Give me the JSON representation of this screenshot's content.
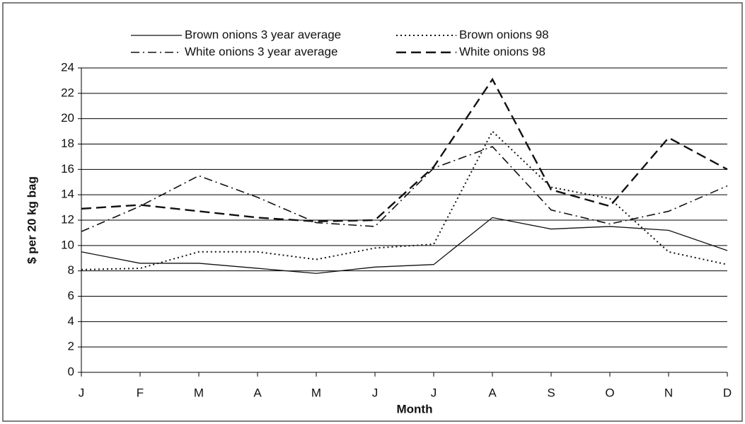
{
  "chart_data": {
    "type": "line",
    "x_label": "Month",
    "y_label": "$ per 20 kg bag",
    "categories": [
      "J",
      "F",
      "M",
      "A",
      "M",
      "J",
      "J",
      "A",
      "S",
      "O",
      "N",
      "D"
    ],
    "series": [
      {
        "name": "Brown onions 3 year average",
        "color": "#111111",
        "dash": "solid",
        "values": [
          9.5,
          8.6,
          8.6,
          8.2,
          7.8,
          8.3,
          8.5,
          12.2,
          11.3,
          11.5,
          11.2,
          9.6
        ]
      },
      {
        "name": "Brown onions 98",
        "color": "#111111",
        "dash": "dot",
        "values": [
          8.1,
          8.2,
          9.5,
          9.5,
          8.9,
          9.8,
          10.1,
          19.0,
          14.6,
          13.7,
          9.5,
          8.5
        ]
      },
      {
        "name": "White onions 3 year average",
        "color": "#111111",
        "dash": "dashdot",
        "values": [
          11.1,
          13.1,
          15.5,
          13.8,
          11.8,
          11.5,
          16.1,
          17.8,
          12.8,
          11.7,
          12.7,
          14.7
        ]
      },
      {
        "name": "White onions 98",
        "color": "#111111",
        "dash": "dash",
        "values": [
          12.9,
          13.2,
          12.7,
          12.2,
          11.9,
          12.0,
          16.2,
          23.1,
          14.4,
          13.1,
          18.5,
          16.0
        ]
      }
    ],
    "ylim": [
      0,
      24
    ],
    "yticks": [
      0,
      2,
      4,
      6,
      8,
      10,
      12,
      14,
      16,
      18,
      20,
      22,
      24
    ],
    "grid": true
  }
}
